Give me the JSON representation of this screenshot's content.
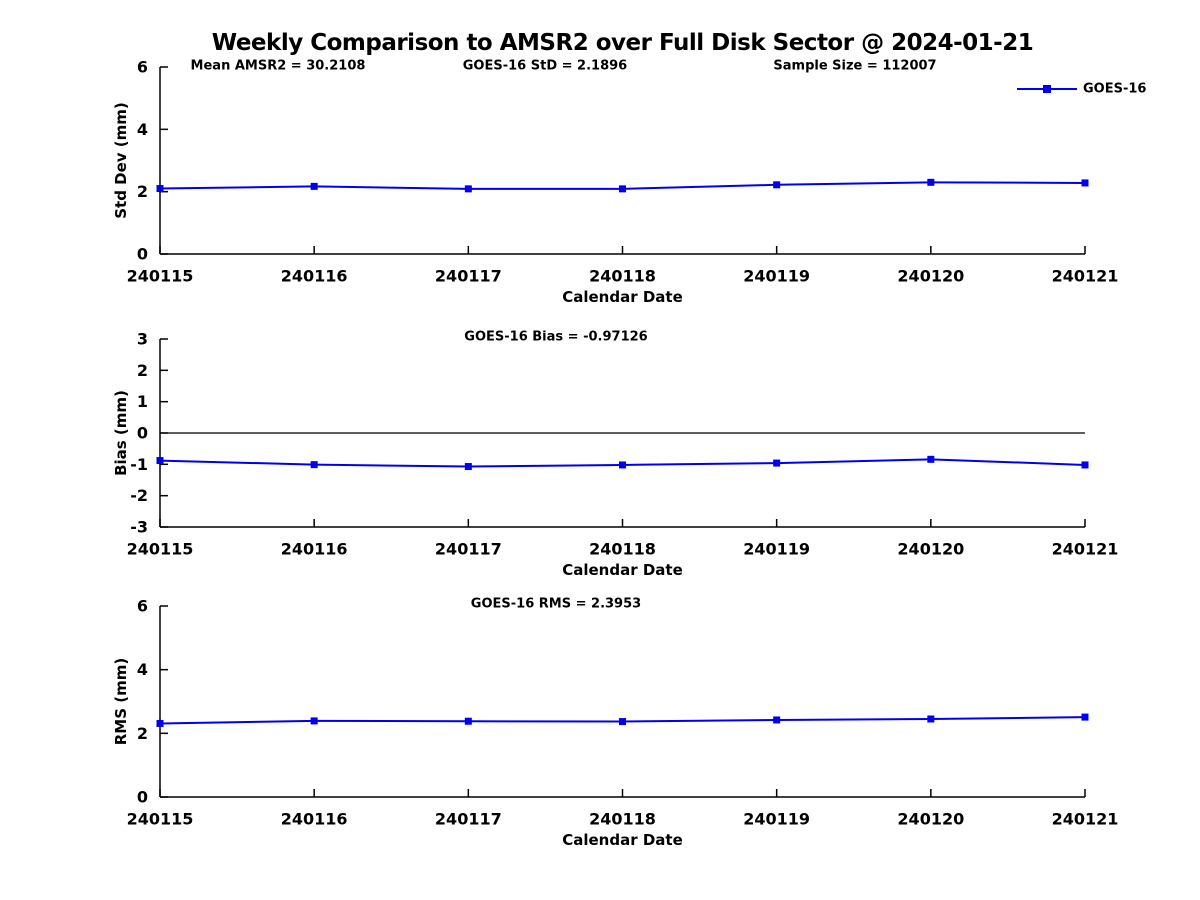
{
  "title": "Weekly Comparison to AMSR2 over Full Disk Sector @ 2024-01-21",
  "series_color": "#0000EE",
  "axis_color": "#000000",
  "legend": {
    "label": "GOES-16",
    "marker": "square",
    "position": "top-right"
  },
  "chart_data": [
    {
      "type": "line",
      "name": "std-dev",
      "ylabel": "Std Dev (mm)",
      "xlabel": "Calendar Date",
      "ylim": [
        0,
        6
      ],
      "yticks": [
        0,
        2,
        4,
        6
      ],
      "grid": false,
      "categories": [
        "240115",
        "240116",
        "240117",
        "240118",
        "240119",
        "240120",
        "240121"
      ],
      "series": [
        {
          "name": "GOES-16",
          "color": "#0000EE",
          "marker": "square",
          "values": [
            2.1,
            2.17,
            2.09,
            2.09,
            2.22,
            2.3,
            2.28
          ]
        }
      ],
      "annotations": [
        "Mean AMSR2 = 30.2108",
        "GOES-16 StD = 2.1896",
        "Sample Size = 112007"
      ],
      "show_legend": true
    },
    {
      "type": "line",
      "name": "bias",
      "ylabel": "Bias (mm)",
      "xlabel": "Calendar Date",
      "ylim": [
        -3,
        3
      ],
      "yticks": [
        -3,
        -2,
        -1,
        0,
        1,
        2,
        3
      ],
      "zero_line": true,
      "grid": false,
      "categories": [
        "240115",
        "240116",
        "240117",
        "240118",
        "240119",
        "240120",
        "240121"
      ],
      "series": [
        {
          "name": "GOES-16",
          "color": "#0000EE",
          "marker": "square",
          "values": [
            -0.88,
            -1.01,
            -1.07,
            -1.02,
            -0.96,
            -0.84,
            -1.02
          ]
        }
      ],
      "annotations": [
        "GOES-16 Bias  = -0.97126"
      ],
      "show_legend": false
    },
    {
      "type": "line",
      "name": "rms",
      "ylabel": "RMS (mm)",
      "xlabel": "Calendar Date",
      "ylim": [
        0,
        6
      ],
      "yticks": [
        0,
        2,
        4,
        6
      ],
      "grid": false,
      "categories": [
        "240115",
        "240116",
        "240117",
        "240118",
        "240119",
        "240120",
        "240121"
      ],
      "series": [
        {
          "name": "GOES-16",
          "color": "#0000EE",
          "marker": "square",
          "values": [
            2.31,
            2.39,
            2.38,
            2.37,
            2.42,
            2.45,
            2.51
          ]
        }
      ],
      "annotations": [
        "GOES-16 RMS = 2.3953"
      ],
      "show_legend": false
    }
  ]
}
